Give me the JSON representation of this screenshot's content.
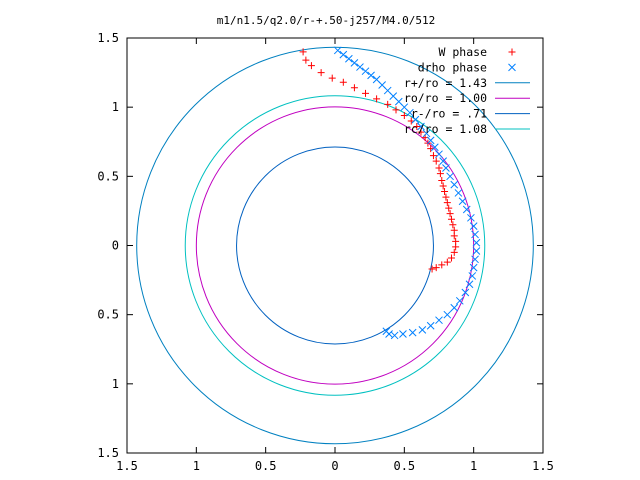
{
  "chart_data": {
    "type": "scatter",
    "title": "m1/n1.5/q2.0/r-+.50-j257/M4.0/512",
    "xlabel": "",
    "ylabel": "",
    "xlim": [
      -1.5,
      1.5
    ],
    "ylim": [
      -1.5,
      1.5
    ],
    "x_ticks": [
      -1.5,
      -1,
      -0.5,
      0,
      0.5,
      1,
      1.5
    ],
    "y_ticks": [
      -1.5,
      -1,
      -0.5,
      0,
      0.5,
      1,
      1.5
    ],
    "x_tick_labels": [
      "1.5",
      "1",
      "0.5",
      "0",
      "0.5",
      "1",
      "1.5"
    ],
    "y_tick_labels": [
      "1.5",
      "1",
      "0.5",
      "0",
      "0.5",
      "1",
      "1.5"
    ],
    "grid": false,
    "legend_position": "top-right",
    "series": [
      {
        "name": "W phase",
        "kind": "points",
        "marker": "plus",
        "color": "#ff0000",
        "points": [
          [
            -0.23,
            1.4
          ],
          [
            -0.21,
            1.34
          ],
          [
            -0.17,
            1.3
          ],
          [
            -0.1,
            1.25
          ],
          [
            -0.02,
            1.21
          ],
          [
            0.06,
            1.18
          ],
          [
            0.14,
            1.14
          ],
          [
            0.22,
            1.1
          ],
          [
            0.3,
            1.06
          ],
          [
            0.38,
            1.02
          ],
          [
            0.44,
            0.98
          ],
          [
            0.5,
            0.94
          ],
          [
            0.55,
            0.9
          ],
          [
            0.59,
            0.86
          ],
          [
            0.62,
            0.82
          ],
          [
            0.65,
            0.78
          ],
          [
            0.67,
            0.74
          ],
          [
            0.69,
            0.7
          ],
          [
            0.71,
            0.65
          ],
          [
            0.73,
            0.61
          ],
          [
            0.75,
            0.56
          ],
          [
            0.76,
            0.52
          ],
          [
            0.77,
            0.47
          ],
          [
            0.78,
            0.43
          ],
          [
            0.79,
            0.39
          ],
          [
            0.8,
            0.35
          ],
          [
            0.81,
            0.31
          ],
          [
            0.82,
            0.27
          ],
          [
            0.83,
            0.23
          ],
          [
            0.84,
            0.19
          ],
          [
            0.85,
            0.15
          ],
          [
            0.86,
            0.11
          ],
          [
            0.86,
            0.07
          ],
          [
            0.87,
            0.03
          ],
          [
            0.87,
            -0.01
          ],
          [
            0.86,
            -0.05
          ],
          [
            0.84,
            -0.09
          ],
          [
            0.81,
            -0.12
          ],
          [
            0.77,
            -0.14
          ],
          [
            0.73,
            -0.16
          ],
          [
            0.7,
            -0.17
          ]
        ]
      },
      {
        "name": "drho phase",
        "kind": "points",
        "marker": "cross",
        "color": "#0080ff",
        "points": [
          [
            0.02,
            1.41
          ],
          [
            0.06,
            1.38
          ],
          [
            0.1,
            1.35
          ],
          [
            0.14,
            1.32
          ],
          [
            0.18,
            1.29
          ],
          [
            0.22,
            1.26
          ],
          [
            0.26,
            1.23
          ],
          [
            0.3,
            1.2
          ],
          [
            0.34,
            1.16
          ],
          [
            0.38,
            1.12
          ],
          [
            0.42,
            1.08
          ],
          [
            0.46,
            1.04
          ],
          [
            0.5,
            1.0
          ],
          [
            0.54,
            0.96
          ],
          [
            0.58,
            0.91
          ],
          [
            0.62,
            0.86
          ],
          [
            0.66,
            0.81
          ],
          [
            0.69,
            0.76
          ],
          [
            0.72,
            0.71
          ],
          [
            0.75,
            0.66
          ],
          [
            0.78,
            0.61
          ],
          [
            0.8,
            0.56
          ],
          [
            0.83,
            0.5
          ],
          [
            0.86,
            0.44
          ],
          [
            0.89,
            0.38
          ],
          [
            0.92,
            0.32
          ],
          [
            0.95,
            0.26
          ],
          [
            0.98,
            0.2
          ],
          [
            1.0,
            0.14
          ],
          [
            1.01,
            0.08
          ],
          [
            1.02,
            0.02
          ],
          [
            1.02,
            -0.04
          ],
          [
            1.01,
            -0.1
          ],
          [
            1.0,
            -0.16
          ],
          [
            0.99,
            -0.22
          ],
          [
            0.97,
            -0.28
          ],
          [
            0.94,
            -0.34
          ],
          [
            0.9,
            -0.4
          ],
          [
            0.86,
            -0.45
          ],
          [
            0.81,
            -0.5
          ],
          [
            0.75,
            -0.54
          ],
          [
            0.69,
            -0.58
          ],
          [
            0.63,
            -0.61
          ],
          [
            0.56,
            -0.63
          ],
          [
            0.49,
            -0.64
          ],
          [
            0.43,
            -0.65
          ],
          [
            0.39,
            -0.64
          ],
          [
            0.37,
            -0.62
          ]
        ]
      },
      {
        "name": "r+/ro = 1.43",
        "kind": "circle",
        "radius": 1.43,
        "color": "#0080c0"
      },
      {
        "name": "ro/ro = 1.00",
        "kind": "circle",
        "radius": 1.0,
        "color": "#c000c0"
      },
      {
        "name": "r-/ro = .71",
        "kind": "circle",
        "radius": 0.71,
        "color": "#0060c0"
      },
      {
        "name": "rc/ro = 1.08",
        "kind": "circle",
        "radius": 1.08,
        "color": "#00c0c0"
      }
    ]
  }
}
